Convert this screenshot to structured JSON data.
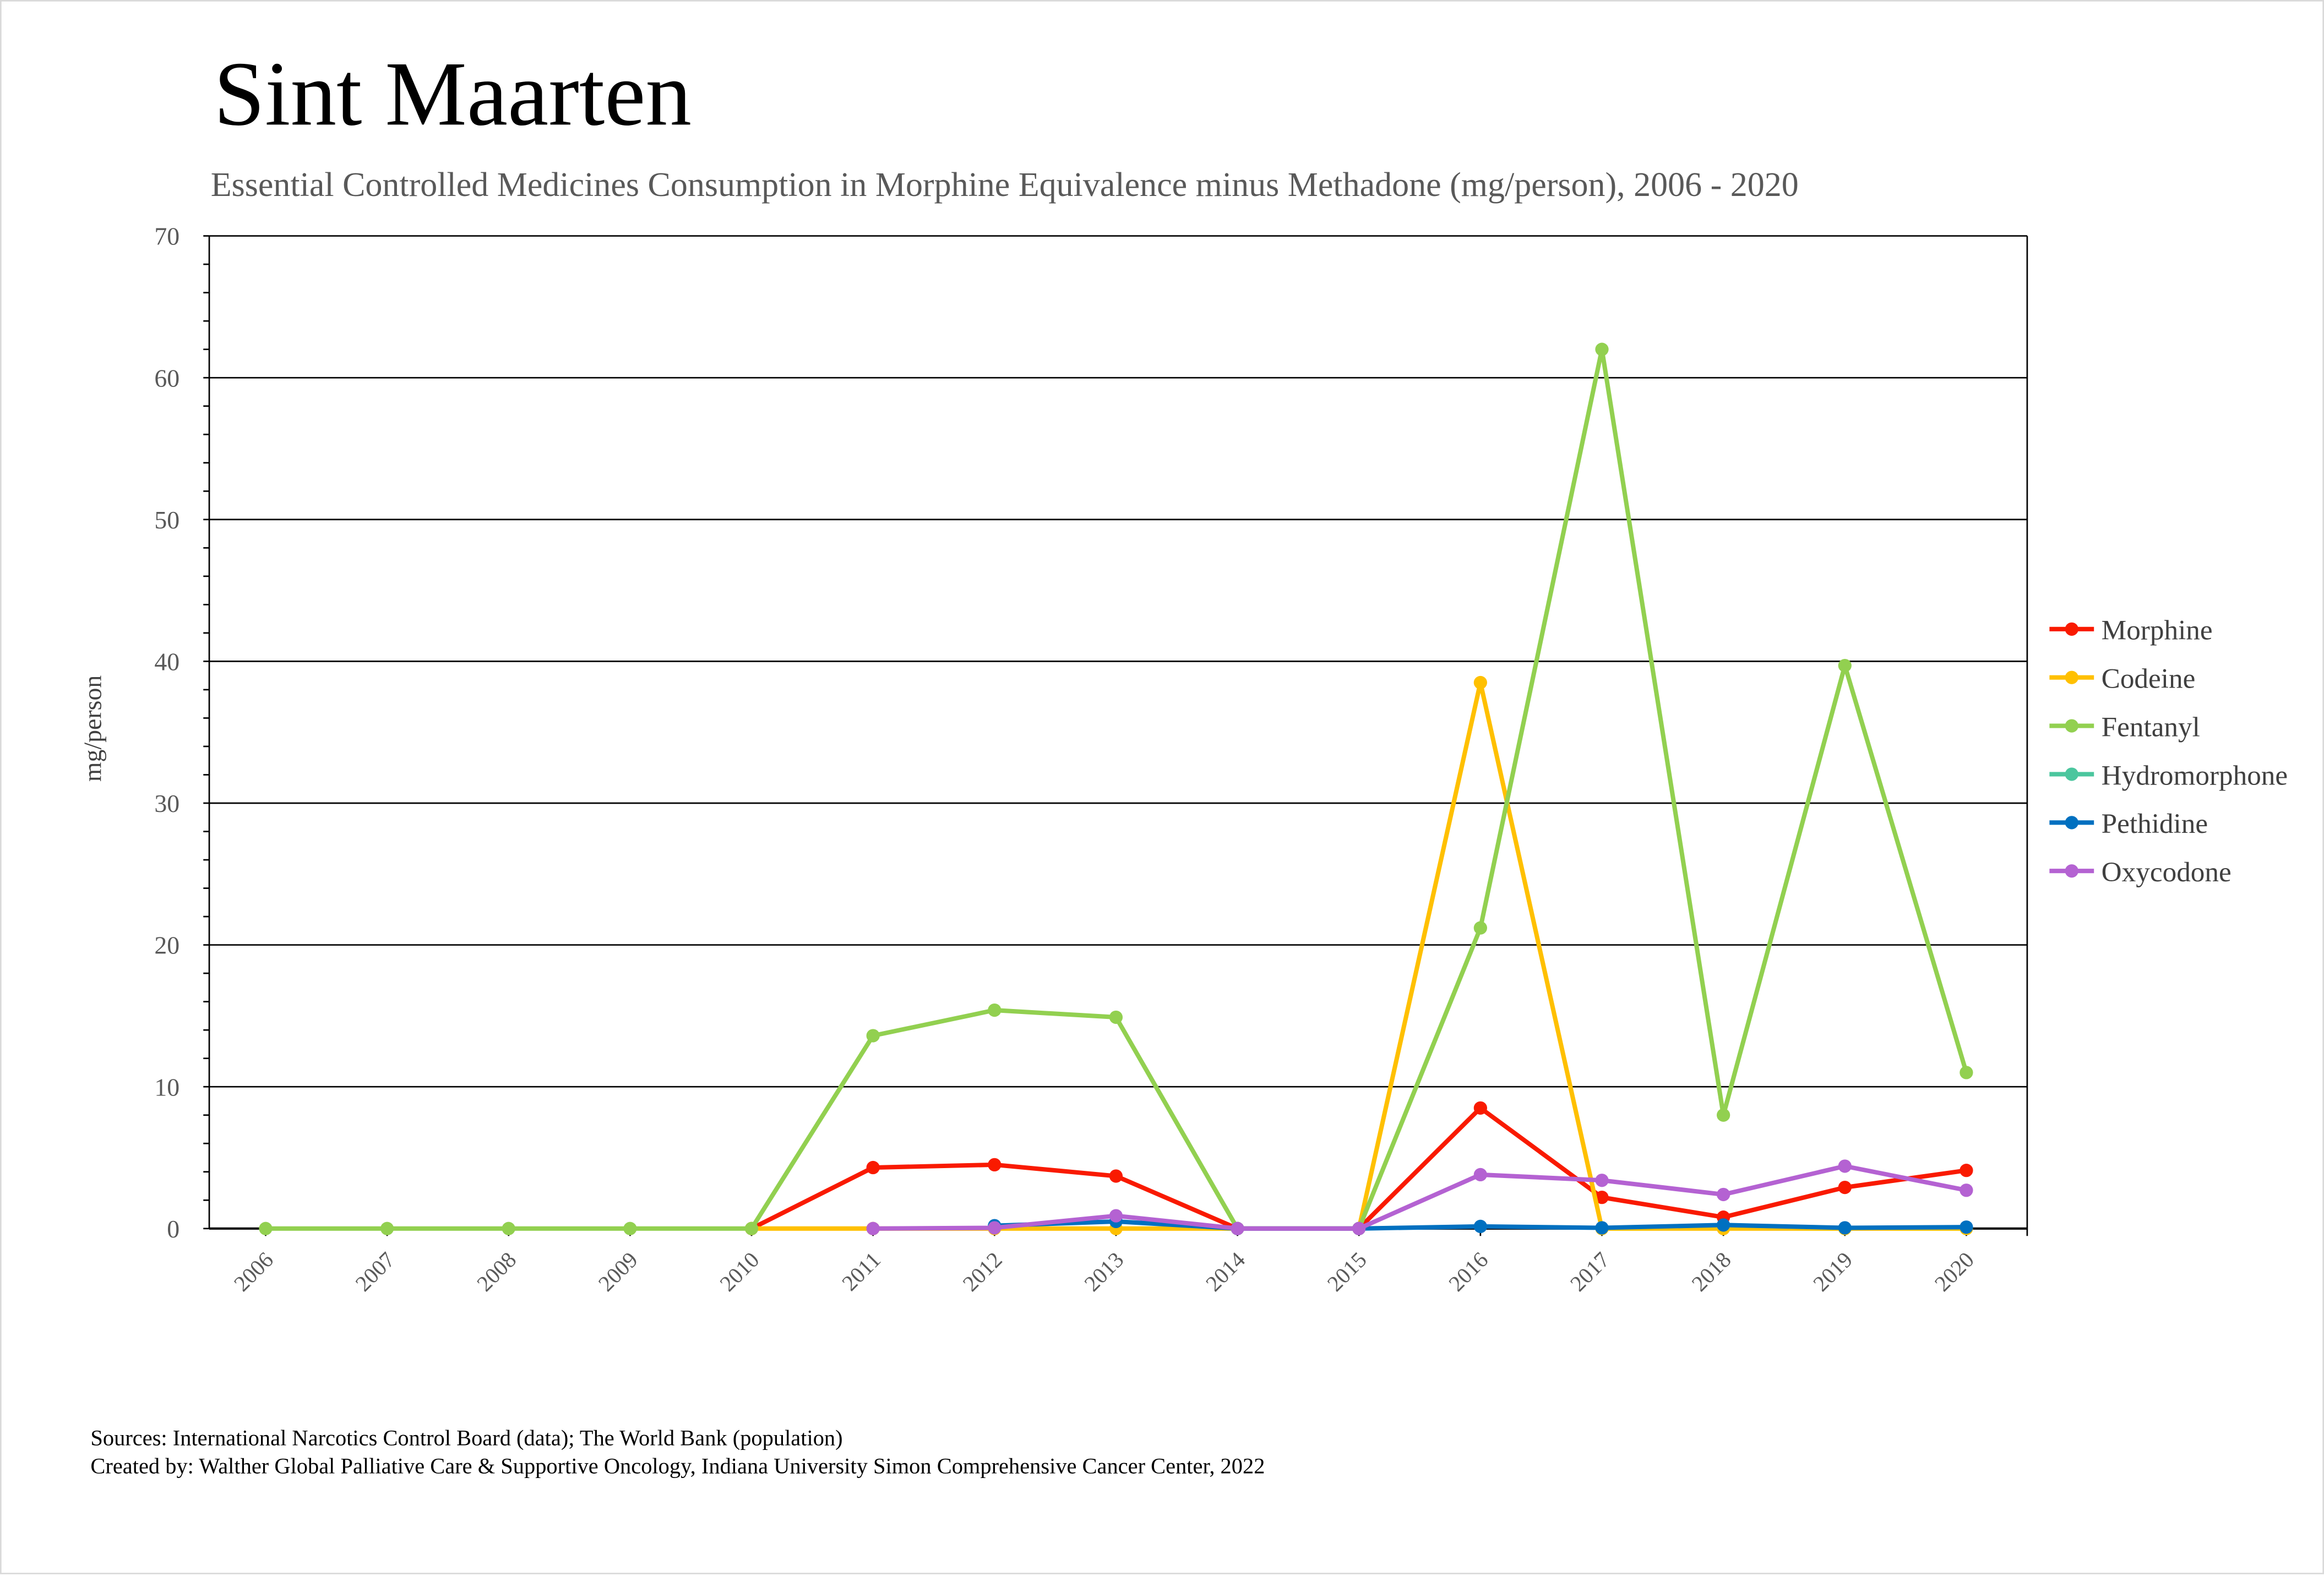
{
  "chart_data": {
    "type": "line",
    "title": "Sint Maarten",
    "subtitle": "Essential Controlled Medicines Consumption in Morphine Equivalence minus Methadone (mg/person), 2006 - 2020",
    "xlabel": "",
    "ylabel": "mg/person",
    "ylim": [
      0,
      70
    ],
    "yticks": [
      0,
      10,
      20,
      30,
      40,
      50,
      60,
      70
    ],
    "grid": true,
    "legend_position": "right",
    "categories": [
      "2006",
      "2007",
      "2008",
      "2009",
      "2010",
      "2011",
      "2012",
      "2013",
      "2014",
      "2015",
      "2016",
      "2017",
      "2018",
      "2019",
      "2020"
    ],
    "series": [
      {
        "name": "Morphine",
        "color": "#f91a00",
        "values": [
          null,
          null,
          null,
          null,
          0,
          4.3,
          4.5,
          3.7,
          0,
          0,
          8.5,
          2.2,
          0.8,
          2.9,
          4.1
        ]
      },
      {
        "name": "Codeine",
        "color": "#ffc000",
        "values": [
          null,
          null,
          null,
          null,
          0,
          0,
          0,
          0,
          0,
          0,
          38.5,
          0,
          0,
          0,
          0
        ]
      },
      {
        "name": "Fentanyl",
        "color": "#92d050",
        "values": [
          0,
          0,
          0,
          0,
          0,
          13.6,
          15.4,
          14.9,
          0,
          0,
          21.2,
          62,
          8,
          39.7,
          11
        ]
      },
      {
        "name": "Hydromorphone",
        "color": "#4bc69e",
        "values": [
          null,
          null,
          null,
          null,
          null,
          null,
          null,
          null,
          null,
          null,
          null,
          null,
          null,
          null,
          null
        ]
      },
      {
        "name": "Pethidine",
        "color": "#0070c0",
        "values": [
          null,
          null,
          null,
          null,
          null,
          null,
          0.2,
          0.5,
          0,
          0,
          0.15,
          0.05,
          0.25,
          0.05,
          0.1
        ]
      },
      {
        "name": "Oxycodone",
        "color": "#b462d2",
        "values": [
          null,
          null,
          null,
          null,
          null,
          0,
          0.05,
          0.9,
          0,
          0,
          3.8,
          3.4,
          2.4,
          4.4,
          2.7
        ]
      }
    ]
  },
  "footer": {
    "sources": "Sources: International Narcotics Control Board (data); The World Bank (population)",
    "created_by": "Created by: Walther Global Palliative Care & Supportive Oncology, Indiana University Simon Comprehensive Cancer Center, 2022"
  }
}
